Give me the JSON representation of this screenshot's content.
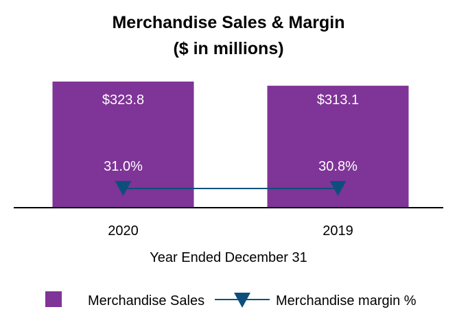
{
  "chart_data": {
    "type": "bar",
    "title": "Merchandise Sales & Margin",
    "subtitle": "($ in millions)",
    "categories": [
      "2020",
      "2019"
    ],
    "xlabel": "Year Ended December 31",
    "ylabel": "",
    "ylim": [
      0,
      323.8
    ],
    "grid": false,
    "series": [
      {
        "name": "Merchandise Sales",
        "type": "bar",
        "values": [
          323.8,
          313.1
        ],
        "labels": [
          "$323.8",
          "$313.1"
        ],
        "color": "#7f3497"
      },
      {
        "name": "Merchandise margin %",
        "type": "line",
        "marker": "triangle-down",
        "values": [
          31.0,
          30.8
        ],
        "labels": [
          "31.0%",
          "30.8%"
        ],
        "color": "#0d4f7c"
      }
    ],
    "legend": "bottom"
  }
}
